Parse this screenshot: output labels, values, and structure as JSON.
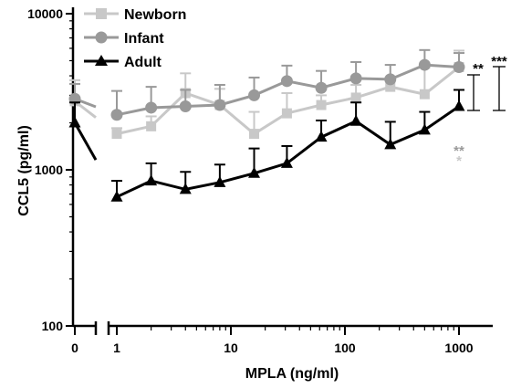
{
  "chart_data": {
    "type": "line",
    "xlabel": "MPLA (ng/ml)",
    "ylabel": "CCL5 (pg/ml)",
    "x_scale": "log",
    "y_scale": "log",
    "x_break": true,
    "ylim": [
      100,
      10000
    ],
    "xlim": [
      1,
      1000
    ],
    "x_ticks": [
      "0",
      "1",
      "10",
      "100",
      "1000"
    ],
    "y_ticks": [
      "100",
      "1000",
      "10000"
    ],
    "legend_position": "top-left",
    "series": [
      {
        "name": "Newborn",
        "color": "#c8c8c8",
        "marker": "square",
        "control": {
          "x": 0,
          "y": 2750,
          "err": 1000
        },
        "x": [
          1,
          2,
          4,
          8,
          16,
          31,
          62,
          125,
          250,
          500,
          1000
        ],
        "y": [
          1700,
          1900,
          3100,
          2600,
          1700,
          2300,
          2600,
          2900,
          3400,
          3050,
          4550
        ],
        "err": [
          150,
          300,
          1050,
          700,
          650,
          800,
          400,
          600,
          500,
          1450,
          1250
        ]
      },
      {
        "name": "Infant",
        "color": "#999999",
        "marker": "circle",
        "control": {
          "x": 0,
          "y": 2850,
          "err": 700
        },
        "x": [
          1,
          2,
          4,
          8,
          16,
          31,
          62,
          125,
          250,
          500,
          1000
        ],
        "y": [
          2250,
          2500,
          2550,
          2600,
          3000,
          3700,
          3350,
          3850,
          3800,
          4700,
          4550
        ],
        "err": [
          950,
          900,
          700,
          900,
          900,
          950,
          950,
          1050,
          900,
          1150,
          1050
        ]
      },
      {
        "name": "Adult",
        "color": "#000000",
        "marker": "triangle",
        "control": {
          "x": 0,
          "y": 2000,
          "err": 700
        },
        "x": [
          1,
          2,
          4,
          8,
          16,
          31,
          62,
          125,
          250,
          500,
          1000
        ],
        "y": [
          670,
          850,
          750,
          830,
          950,
          1100,
          1620,
          2050,
          1450,
          1800,
          2550
        ],
        "err": [
          180,
          250,
          220,
          250,
          420,
          320,
          450,
          650,
          580,
          550,
          700
        ]
      }
    ],
    "annotations": [
      {
        "text": "**",
        "color": "#000000"
      },
      {
        "text": "***",
        "color": "#000000"
      },
      {
        "text": "**",
        "color": "#999999"
      },
      {
        "text": "*",
        "color": "#c8c8c8"
      }
    ]
  }
}
